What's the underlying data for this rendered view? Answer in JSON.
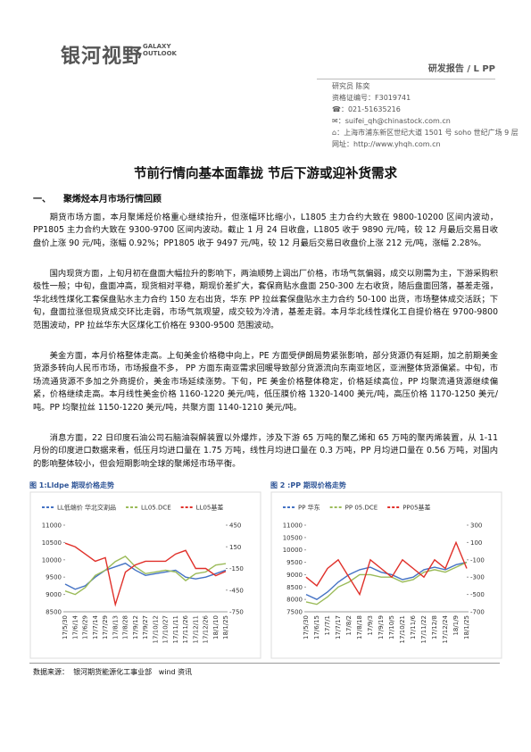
{
  "header": {
    "logo": "银河视野",
    "logo_en": "GALAXY OUTLOOK",
    "report": "研发报告 / L PP"
  },
  "contact": [
    "研究员  陈奕",
    "资格证编号：F3019741",
    "021-51635216",
    "suifei_qh@chinastock.com.cn",
    "上海市浦东新区世纪大道 1501 号 soho 世纪广场 9 层",
    "网址：http://www.yhqh.com.cn"
  ],
  "title": "节前行情向基本面靠拢  节后下游或迎补货需求",
  "section": {
    "number": "一、",
    "heading": "聚烯烃本月市场行情回顾"
  },
  "paragraphs": [
    "期货市场方面，本月聚烯烃价格重心继续抬升，但涨幅环比缩小，L1805 主力合约大致在 9800-10200 区间内波动，PP1805 主力合约大致在 9300-9700 区间内波动。截止 1 月 24 日收盘，L1805 收于 9890 元/吨，较 12 月最后交易日收盘价上涨 90 元/吨，涨幅 0.92%；PP1805 收于 9497 元/吨，较 12 月最后交易日收盘价上涨 212 元/吨，涨幅 2.28%。",
    "国内现货方面，上旬月初在盘面大幅拉升的影响下，两油顺势上调出厂价格，市场气氛偏弱，成交以刚需为主，下游采购积极性一般；中旬，盘面冲高，现货相对平稳，期现价差扩大，套保商贴水盘面 250-300 左右收货，随后盘面回落，基差走强，华北线性煤化工套保盘贴水主力合约 150 左右出货，华东 PP 拉丝套保盘贴水主力合约 50-100 出货，市场整体成交活跃；下旬，盘面拉涨但现货成交环比走弱，市场气氛观望，成交较为冷清，基差走弱。本月华北线性煤化工自提价格在 9700-9800 范围波动，PP 拉丝华东大区煤化工价格在 9300-9500 范围波动。",
    "美金方面，本月价格整体走高。上旬美金价格稳中向上，PE 方面受伊朗局势紧张影响，部分货源仍有延期，加之前期美金货源多转向人民币市场，市场报盘不多， PP 方面东南亚需求回暖导致部分货源流向东南亚地区，亚洲整体货源偏紧。中旬，市场流通货源不多加之外商提价，美金市场延续涨势。下旬，PE 美金价格整体稳定，价格延续高位，PP 均聚流通货源继续偏紧，价格继续走高。本月线性美金价格 1160-1220 美元/吨，低压膜价格 1320-1400 美元/吨，高压价格 1170-1250 美元/吨。PP 均聚拉丝 1150-1220 美元/吨，共聚方面 1140-1210 美元/吨。",
    "消息方面，22 日印度石油公司石脑油裂解装置以外爆炸，涉及下游 65 万吨的聚乙烯和 65 万吨的聚丙烯装置，从 1-11 月份的印度进口数据来看，低压月均进口量在 1.75 万吨，线性月均进口量在 0.3 万吨，PP 月均进口量在 0.56 万吨，对国内的影响整体较小，但会短期影响全球的聚烯烃市场平衡。"
  ],
  "charts": [
    {
      "type": "line",
      "caption": "图 1:Lldpe 期现价格走势",
      "categories": [
        "17/5/30",
        "17/6/14",
        "17/6/29",
        "17/7/14",
        "17/7/29",
        "17/8/13",
        "17/8/28",
        "17/9/12",
        "17/9/27",
        "17/10/12",
        "17/10/27",
        "17/11/11",
        "17/11/26",
        "17/12/11",
        "17/12/26",
        "18/1/10",
        "18/1/25"
      ],
      "series": [
        {
          "name": "LL低端价 华北交割品",
          "color": "#4472c4",
          "values": [
            9300,
            9150,
            9250,
            9500,
            9700,
            9800,
            9900,
            9700,
            9550,
            9600,
            9650,
            9700,
            9500,
            9450,
            9500,
            9600,
            9700
          ]
        },
        {
          "name": "LL05.DCE",
          "color": "#9bbb59",
          "values": [
            9100,
            9000,
            9200,
            9550,
            9700,
            9950,
            10100,
            9800,
            9600,
            9650,
            9700,
            9650,
            9400,
            9600,
            9650,
            9850,
            9890
          ]
        },
        {
          "name": "LL05基差",
          "color": "#e0302a",
          "axis": "y2",
          "values": [
            200,
            150,
            50,
            -50,
            0,
            -650,
            -200,
            -100,
            -50,
            -50,
            -50,
            50,
            100,
            -150,
            -150,
            -250,
            -190
          ]
        }
      ],
      "ylim": [
        8500,
        11000
      ],
      "yticks": [
        8500,
        9000,
        9500,
        10000,
        10500,
        11000
      ],
      "y2lim": [
        -750,
        450
      ],
      "y2ticks": [
        -750,
        -450,
        -150,
        150,
        450
      ]
    },
    {
      "type": "line",
      "caption": "图 2 :PP 期现价格走势",
      "categories": [
        "17/5/30",
        "17/6/15",
        "17/7/1",
        "17/7/17",
        "17/8/2",
        "17/8/18",
        "17/9/3",
        "17/9/19",
        "17/10/5",
        "17/10/21",
        "17/11/6",
        "17/11/22",
        "17/12/8",
        "17/12/24",
        "18/1/9",
        "18/1/25"
      ],
      "series": [
        {
          "name": "PP 华东",
          "color": "#4472c4",
          "values": [
            8200,
            8000,
            8300,
            8700,
            9000,
            9200,
            9300,
            9100,
            9000,
            8800,
            8900,
            9200,
            9300,
            9200,
            9400,
            9500
          ]
        },
        {
          "name": "PP 05.DCE",
          "color": "#9bbb59",
          "values": [
            7900,
            7800,
            8100,
            8500,
            8700,
            9000,
            9000,
            8900,
            8900,
            8700,
            8800,
            9100,
            9200,
            9100,
            9300,
            9497
          ]
        },
        {
          "name": "PP05基差",
          "color": "#e0302a",
          "axis": "y2",
          "values": [
            -300,
            -400,
            -200,
            -100,
            -300,
            -500,
            -100,
            -200,
            -300,
            -100,
            -200,
            -300,
            -100,
            -200,
            100,
            -200
          ]
        }
      ],
      "ylim": [
        7500,
        11000
      ],
      "yticks": [
        7500,
        8000,
        8500,
        9000,
        9500,
        10000,
        10500,
        11000
      ],
      "y2lim": [
        -700,
        300
      ],
      "y2ticks": [
        -700,
        -500,
        -300,
        -100,
        100,
        300
      ]
    }
  ],
  "source": "数据来源：  银河期货能源化工事业部   wind 资讯"
}
